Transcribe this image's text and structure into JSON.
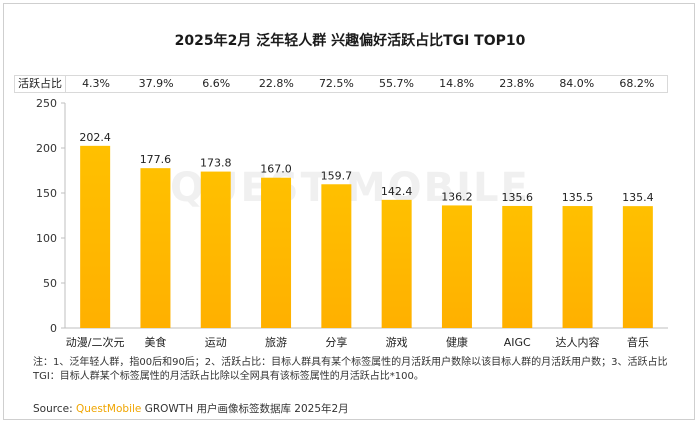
{
  "title": "2025年2月 泛年轻人群 兴趣偏好活跃占比TGI TOP10",
  "share_row": {
    "label": "活跃占比",
    "values": [
      "4.3%",
      "37.9%",
      "6.6%",
      "22.8%",
      "72.5%",
      "55.7%",
      "14.8%",
      "23.8%",
      "84.0%",
      "68.2%"
    ]
  },
  "watermark": "QUEST MOBILE",
  "chart_data": {
    "type": "bar",
    "categories": [
      "动漫/二次元",
      "美食",
      "运动",
      "旅游",
      "分享",
      "游戏",
      "健康",
      "AIGC",
      "达人内容",
      "音乐"
    ],
    "values": [
      202.4,
      177.6,
      173.8,
      167.0,
      159.7,
      142.4,
      136.2,
      135.6,
      135.5,
      135.4
    ],
    "value_labels": [
      "202.4",
      "177.6",
      "173.8",
      "167.0",
      "159.7",
      "142.4",
      "136.2",
      "135.6",
      "135.5",
      "135.4"
    ],
    "yticks": [
      "250",
      "200",
      "150",
      "100",
      "50",
      "0"
    ],
    "ylim": [
      0,
      250
    ],
    "bar_color": "#ffc000",
    "grid": false
  },
  "notes": {
    "line1": "注：1、泛年轻人群，指00后和90后；2、活跃占比：目标人群具有某个标签属性的月活跃用户数除以该目标人群的月活跃用户数；3、活跃占比TGI：目标人群某个标签属性的月活跃占比除以全网具有该标签属性的月活跃占比*100。"
  },
  "source": {
    "prefix": "Source: ",
    "brand": "QuestMobile",
    "rest": " GROWTH 用户画像标签数据库 2025年2月"
  }
}
